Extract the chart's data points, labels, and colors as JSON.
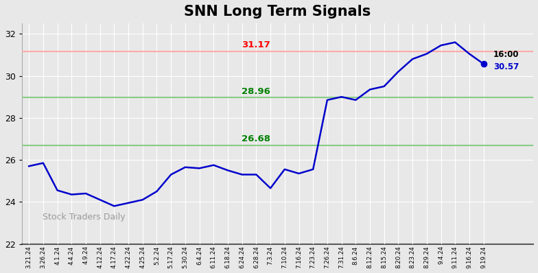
{
  "title": "SNN Long Term Signals",
  "red_line": 31.17,
  "green_line_upper": 28.96,
  "green_line_lower": 26.68,
  "last_value": 30.57,
  "last_label": "16:00",
  "annotation_red": "31.17",
  "annotation_green_upper": "28.96",
  "annotation_green_lower": "26.68",
  "watermark": "Stock Traders Daily",
  "x_labels": [
    "3.21.24",
    "3.26.24",
    "4.1.24",
    "4.4.24",
    "4.9.24",
    "4.12.24",
    "4.17.24",
    "4.22.24",
    "4.25.24",
    "5.2.24",
    "5.17.24",
    "5.30.24",
    "6.4.24",
    "6.11.24",
    "6.18.24",
    "6.24.24",
    "6.28.24",
    "7.3.24",
    "7.10.24",
    "7.16.24",
    "7.23.24",
    "7.26.24",
    "7.31.24",
    "8.6.24",
    "8.12.24",
    "8.15.24",
    "8.20.24",
    "8.23.24",
    "8.29.24",
    "9.4.24",
    "9.11.24",
    "9.16.24",
    "9.19.24"
  ],
  "y_values": [
    25.7,
    25.85,
    24.55,
    24.35,
    24.4,
    24.1,
    23.8,
    23.95,
    24.1,
    24.5,
    25.3,
    25.65,
    25.6,
    25.75,
    25.5,
    25.3,
    25.3,
    24.65,
    25.55,
    25.35,
    25.55,
    28.85,
    29.0,
    28.85,
    29.35,
    29.5,
    30.2,
    30.8,
    31.05,
    31.45,
    31.6,
    31.05,
    30.57
  ],
  "line_color": "#0000cc",
  "line_width": 1.8,
  "title_fontsize": 15,
  "title_fontweight": "bold",
  "ylim": [
    22,
    32.5
  ],
  "yticks": [
    22,
    24,
    26,
    28,
    30,
    32
  ],
  "bg_color": "#e8e8e8",
  "grid_color": "white"
}
